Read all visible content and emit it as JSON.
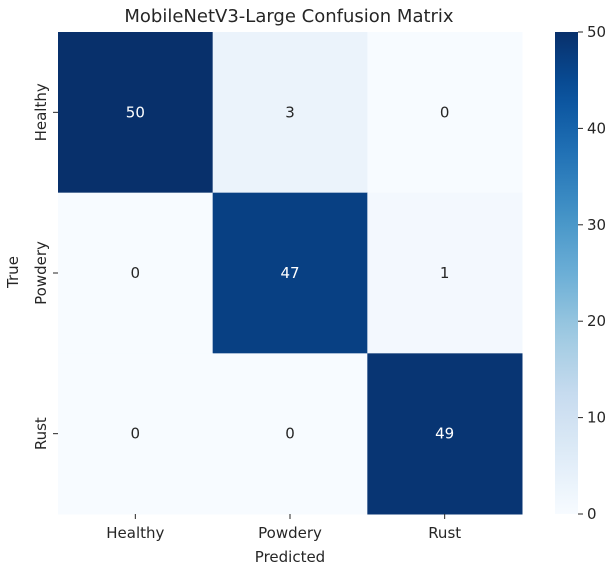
{
  "chart_data": {
    "type": "heatmap",
    "title": "MobileNetV3-Large Confusion Matrix",
    "xlabel": "Predicted",
    "ylabel": "True",
    "x_categories": [
      "Healthy",
      "Powdery",
      "Rust"
    ],
    "y_categories": [
      "Healthy",
      "Powdery",
      "Rust"
    ],
    "values": [
      [
        50,
        3,
        0
      ],
      [
        0,
        47,
        1
      ],
      [
        0,
        0,
        49
      ]
    ],
    "colormap": "Blues",
    "vmin": 0,
    "vmax": 50,
    "colorbar_ticks": [
      "0",
      "10",
      "20",
      "30",
      "40",
      "50"
    ],
    "colors": {
      "low": "#f7fbff",
      "high": "#08306b",
      "text_dark": "#262626",
      "text_light": "#ffffff"
    }
  }
}
